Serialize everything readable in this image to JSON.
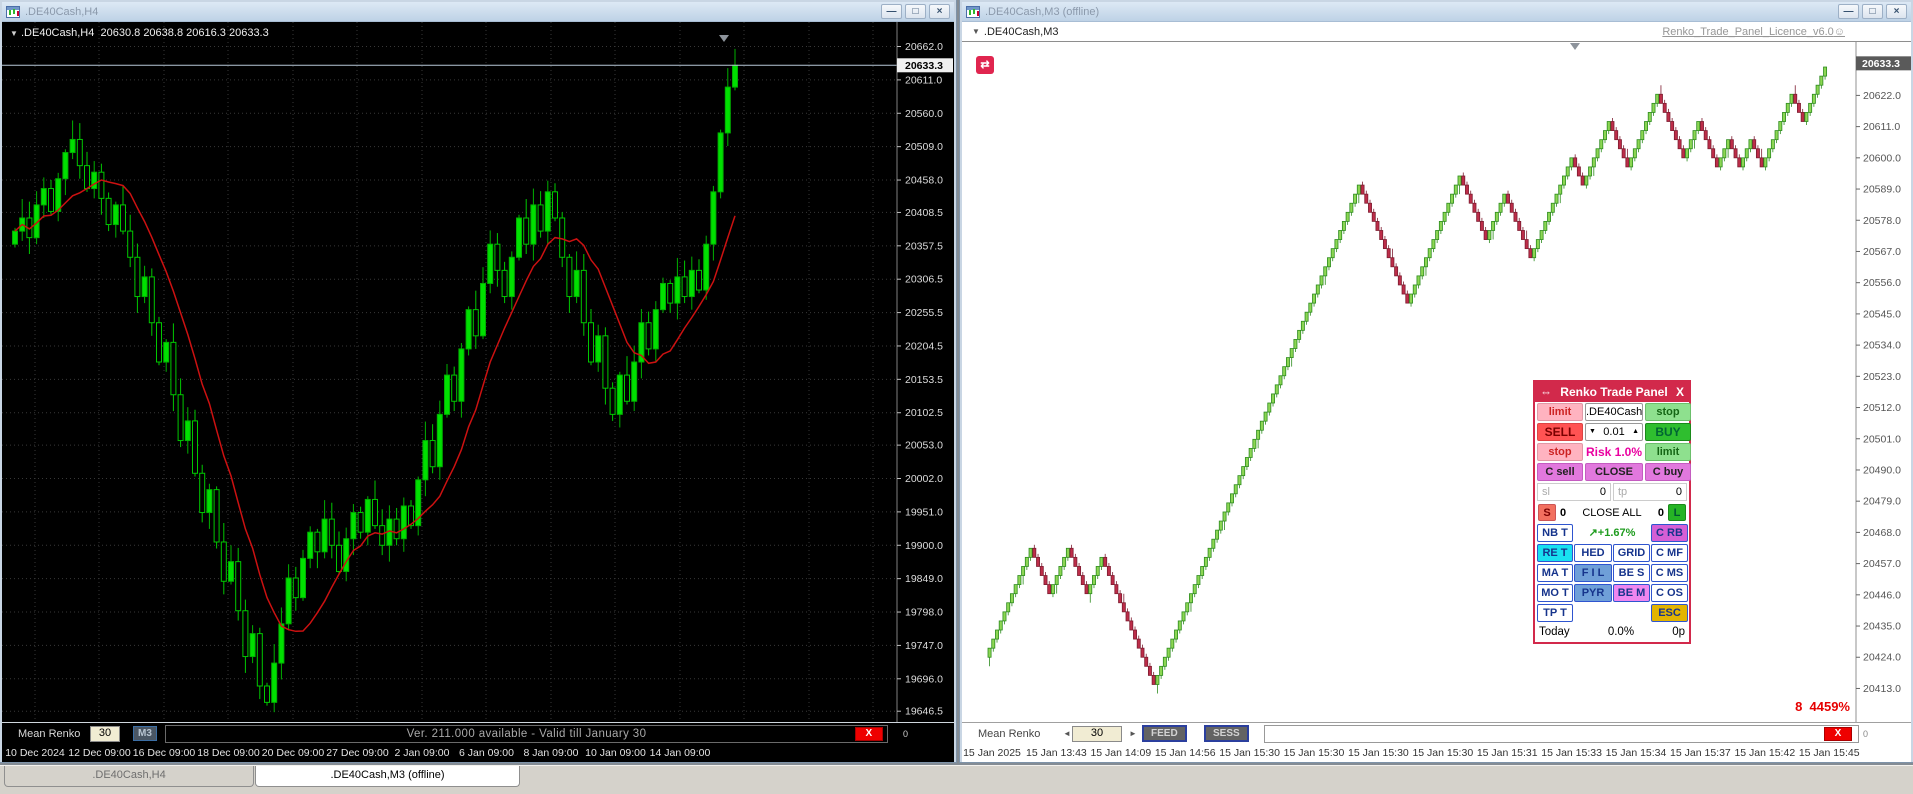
{
  "colors": {
    "candle_up_fill": "#00e000",
    "candle_up_stroke": "#00b000",
    "candle_down_fill": "#000000",
    "candle_down_stroke": "#00c800",
    "ma_line": "#cc1111",
    "grid": "#383838",
    "brick_up_fill": "#8cd653",
    "brick_up_stroke": "#2d8c1e",
    "brick_down_fill": "#bd2d49",
    "brick_down_stroke": "#7d1c30",
    "price_line": "#b8c8d8",
    "accent_red": "#e0254f"
  },
  "left_window": {
    "title": ".DE40Cash,H4",
    "dropdown_icon": "▼",
    "ohlc": {
      "symbol": ".DE40Cash,H4",
      "o": "20630.8",
      "h": "20638.8",
      "l": "20616.3",
      "c": "20633.3"
    },
    "strip": {
      "indicator": "Mean Renko",
      "input_value": "30",
      "tf_button": "M3",
      "license_msg": "Ver. 211.000 available  -  Valid till January 30",
      "close_label": "X",
      "scale_zero": "0"
    },
    "controls": {
      "minimize": "—",
      "restore": "□",
      "close": "×"
    }
  },
  "right_window": {
    "title": ".DE40Cash,M3 (offline)",
    "dropdown_icon": "▼",
    "header_symbol": ".DE40Cash,M3",
    "license_link": "Renko_Trade_Panel_Licence_v6.0",
    "smiley": "☺",
    "toggle_glyph": "⇄",
    "perf_text": "8  4459%",
    "strip": {
      "indicator": "Mean Renko",
      "left_arrow": "◄",
      "input_value": "30",
      "right_arrow": "►",
      "feed_button": "FEED",
      "sess_button": "SESS",
      "close_label": "X",
      "scale_zero": "0"
    },
    "controls": {
      "minimize": "—",
      "restore": "□",
      "close": "×"
    }
  },
  "panel": {
    "move_icon": "⇔",
    "title": "Renko Trade Panel",
    "close": "X",
    "limit_l": "limit",
    "symbol": ".DE40Cash",
    "stop_r": "stop",
    "sell": "SELL",
    "lot_down": "▼",
    "lot": "0.01",
    "lot_up": "▲",
    "buy": "BUY",
    "stop_l": "stop",
    "risk": "Risk 1.0%",
    "limit_r": "limit",
    "c_sell": "C sell",
    "close_btn": "CLOSE",
    "c_buy": "C buy",
    "sl_label": "sl",
    "sl_value": "0",
    "tp_label": "tp",
    "tp_value": "0",
    "s_btn": "S",
    "s_count": "0",
    "close_all": "CLOSE ALL",
    "l_count": "0",
    "l_btn": "L",
    "nbt": "NB T",
    "pct": "↗+1.67%",
    "crb": "C RB",
    "ret": "RE T",
    "hed": "HED",
    "grid": "GRID",
    "cmf": "C MF",
    "mat": "MA T",
    "fil": "F I L",
    "bes": "BE S",
    "cms": "C MS",
    "mot": "MO T",
    "pyr": "PYR",
    "bem": "BE M",
    "cos": "C OS",
    "tpt": "TP T",
    "esc": "ESC",
    "today_label": "Today",
    "today_pct": "0.0%",
    "today_points": "0p"
  },
  "tabs": [
    {
      "label": ".DE40Cash,H4"
    },
    {
      "label": ".DE40Cash,M3 (offline)"
    }
  ],
  "chart_data": [
    {
      "type": "candlestick",
      "title": ".DE40Cash,H4",
      "current_price": "20633.3",
      "ylim": [
        19630,
        20675
      ],
      "open_first": 20360,
      "ma_period": 10,
      "closes": [
        20380,
        20400,
        20370,
        20420,
        20445,
        20410,
        20460,
        20500,
        20520,
        20480,
        20445,
        20470,
        20430,
        20390,
        20420,
        20380,
        20340,
        20280,
        20310,
        20240,
        20180,
        20210,
        20130,
        20060,
        20090,
        20010,
        19950,
        19985,
        19905,
        19845,
        19875,
        19800,
        19730,
        19765,
        19685,
        19660,
        19720,
        19780,
        19850,
        19820,
        19880,
        19920,
        19890,
        19940,
        19900,
        19860,
        19910,
        19950,
        19920,
        19970,
        19930,
        19900,
        19940,
        19910,
        19960,
        19930,
        20000,
        20060,
        20020,
        20100,
        20160,
        20120,
        20200,
        20260,
        20220,
        20300,
        20360,
        20320,
        20280,
        20340,
        20400,
        20360,
        20420,
        20380,
        20440,
        20400,
        20340,
        20280,
        20320,
        20240,
        20180,
        20220,
        20140,
        20100,
        20160,
        20120,
        20180,
        20240,
        20200,
        20260,
        20300,
        20270,
        20310,
        20280,
        20320,
        20290,
        20360,
        20440,
        20530,
        20600,
        20633.3
      ],
      "price_ticks": [
        "20662.0",
        "20611.0",
        "20560.0",
        "20509.0",
        "20458.0",
        "20408.5",
        "20357.5",
        "20306.5",
        "20255.5",
        "20204.5",
        "20153.5",
        "20102.5",
        "20053.0",
        "20002.0",
        "19951.0",
        "19900.0",
        "19849.0",
        "19798.0",
        "19747.0",
        "19696.0",
        "19646.5"
      ],
      "time_labels": [
        "10 Dec 2024",
        "12 Dec 09:00",
        "16 Dec 09:00",
        "18 Dec 09:00",
        "20 Dec 09:00",
        "27 Dec 09:00",
        "2 Jan 09:00",
        "6 Jan 09:00",
        "8 Jan 09:00",
        "10 Jan 09:00",
        "14 Jan 09:00"
      ]
    },
    {
      "type": "renko",
      "title": ".DE40Cash,M3",
      "current_price": "20633.3",
      "ylim": [
        20404,
        20638
      ],
      "start_price": 20424,
      "brick_points": 3.2,
      "legs": [
        12,
        -5,
        5,
        -5,
        4,
        -14,
        55,
        -13,
        14,
        -7,
        5,
        -7,
        11,
        -3,
        7,
        -5,
        8,
        -7,
        4,
        -5,
        3,
        -3,
        3,
        -3,
        8,
        -3,
        6
      ],
      "price_ticks": [
        "20622.0",
        "20611.0",
        "20600.0",
        "20589.0",
        "20578.0",
        "20567.0",
        "20556.0",
        "20545.0",
        "20534.0",
        "20523.0",
        "20512.0",
        "20501.0",
        "20490.0",
        "20479.0",
        "20468.0",
        "20457.0",
        "20446.0",
        "20435.0",
        "20424.0",
        "20413.0"
      ],
      "time_labels": [
        "15 Jan 2025",
        "15 Jan 13:43",
        "15 Jan 14:09",
        "15 Jan 14:56",
        "15 Jan 15:30",
        "15 Jan 15:30",
        "15 Jan 15:30",
        "15 Jan 15:30",
        "15 Jan 15:31",
        "15 Jan 15:33",
        "15 Jan 15:34",
        "15 Jan 15:37",
        "15 Jan 15:42",
        "15 Jan 15:45"
      ]
    }
  ]
}
